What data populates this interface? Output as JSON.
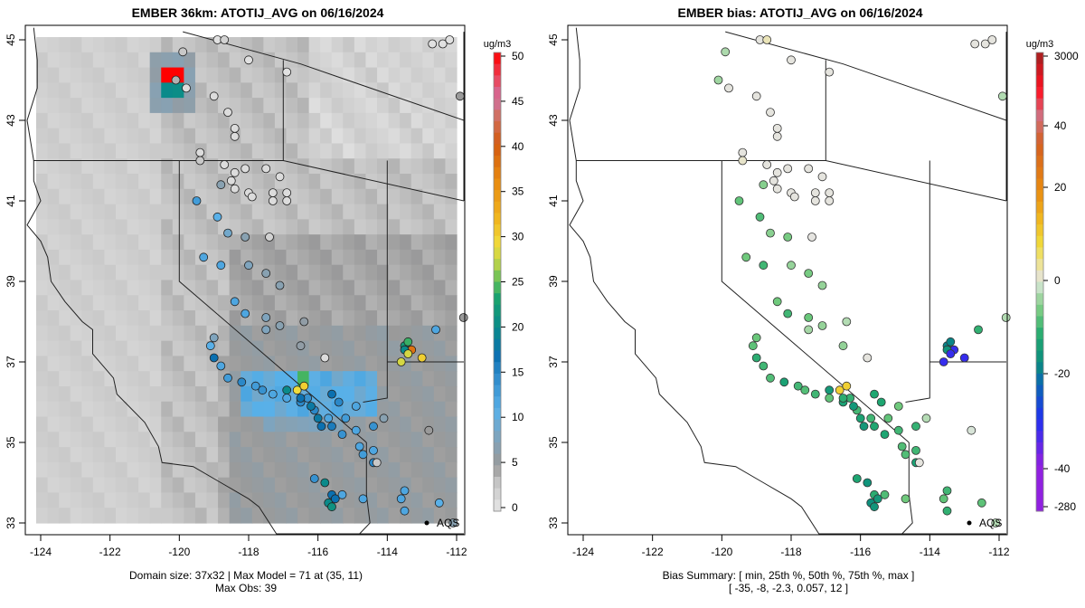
{
  "chart_data": [
    {
      "type": "heatmap",
      "title": "EMBER 36km: ATOTIJ_AVG on 06/16/2024",
      "xlim": [
        -124.2,
        -111.8
      ],
      "ylim": [
        32.8,
        45.2
      ],
      "x_ticks": [
        "-124",
        "-122",
        "-120",
        "-118",
        "-116",
        "-114",
        "-112"
      ],
      "y_ticks": [
        "33",
        "35",
        "37",
        "39",
        "41",
        "43",
        "45"
      ],
      "colorbar": {
        "unit": "ug/m3",
        "ticks": [
          "0",
          "5",
          "10",
          "15",
          "20",
          "25",
          "30",
          "35",
          "40",
          "45",
          "50"
        ],
        "range": [
          0,
          50
        ]
      },
      "footer": [
        "Domain size: 37x32 | Max Model = 71 at (35, 11)",
        "Max Obs: 39"
      ],
      "marker_label": "AQS",
      "obs_points": [
        [
          -119.9,
          44.7,
          3
        ],
        [
          -118.9,
          45.0,
          0.5
        ],
        [
          -118.7,
          45.0,
          2
        ],
        [
          -118.0,
          44.5,
          0.5
        ],
        [
          -116.9,
          44.2,
          0.5
        ],
        [
          -120.1,
          44.0,
          4
        ],
        [
          -119.8,
          43.8,
          1
        ],
        [
          -119.0,
          43.6,
          1
        ],
        [
          -118.6,
          43.2,
          1
        ],
        [
          -118.4,
          42.8,
          1
        ],
        [
          -118.4,
          42.6,
          1
        ],
        [
          -119.4,
          42.2,
          1
        ],
        [
          -119.4,
          42.0,
          3
        ],
        [
          -118.7,
          41.9,
          1
        ],
        [
          -118.4,
          41.7,
          1
        ],
        [
          -118.1,
          41.8,
          1
        ],
        [
          -117.5,
          41.8,
          1
        ],
        [
          -117.1,
          41.6,
          1
        ],
        [
          -118.8,
          41.4,
          7
        ],
        [
          -118.5,
          41.5,
          1
        ],
        [
          -118.4,
          41.3,
          1
        ],
        [
          -118.0,
          41.2,
          1
        ],
        [
          -117.9,
          41.1,
          1
        ],
        [
          -117.3,
          41.2,
          1
        ],
        [
          -117.3,
          41.0,
          1
        ],
        [
          -116.9,
          41.0,
          1
        ],
        [
          -116.9,
          41.2,
          1
        ],
        [
          -119.5,
          41.0,
          13
        ],
        [
          -118.9,
          40.6,
          11
        ],
        [
          -118.6,
          40.2,
          9
        ],
        [
          -118.1,
          40.1,
          7
        ],
        [
          -117.4,
          40.1,
          2
        ],
        [
          -119.3,
          39.6,
          12
        ],
        [
          -118.8,
          39.4,
          12
        ],
        [
          -118.0,
          39.4,
          8
        ],
        [
          -117.5,
          39.2,
          7
        ],
        [
          -117.1,
          38.9,
          7
        ],
        [
          -118.4,
          38.5,
          12
        ],
        [
          -118.1,
          38.2,
          12
        ],
        [
          -116.4,
          38.0,
          6
        ],
        [
          -117.5,
          38.1,
          8
        ],
        [
          -117.1,
          37.9,
          7
        ],
        [
          -117.5,
          37.8,
          8
        ],
        [
          -116.5,
          37.4,
          6
        ],
        [
          -115.8,
          37.1,
          1
        ],
        [
          -119.0,
          37.6,
          8
        ],
        [
          -119.1,
          37.4,
          11
        ],
        [
          -119.0,
          37.1,
          17
        ],
        [
          -118.8,
          36.9,
          12
        ],
        [
          -118.6,
          36.6,
          13
        ],
        [
          -118.2,
          36.5,
          15
        ],
        [
          -117.8,
          36.4,
          13
        ],
        [
          -117.6,
          36.3,
          14
        ],
        [
          -117.3,
          36.2,
          12
        ],
        [
          -116.9,
          36.1,
          12
        ],
        [
          -116.5,
          36.0,
          15
        ],
        [
          -116.3,
          36.1,
          14
        ],
        [
          -116.1,
          35.8,
          15
        ],
        [
          -115.7,
          35.6,
          12
        ],
        [
          -116.9,
          36.3,
          20
        ],
        [
          -116.6,
          36.3,
          29
        ],
        [
          -116.4,
          36.4,
          30
        ],
        [
          -116.5,
          36.1,
          17
        ],
        [
          -116.2,
          35.9,
          18
        ],
        [
          -116.0,
          35.6,
          18
        ],
        [
          -115.9,
          35.4,
          17
        ],
        [
          -115.6,
          35.4,
          16
        ],
        [
          -115.2,
          35.6,
          13
        ],
        [
          -115.4,
          36.0,
          15
        ],
        [
          -115.6,
          36.2,
          17
        ],
        [
          -115.3,
          35.2,
          14
        ],
        [
          -114.8,
          34.9,
          12
        ],
        [
          -114.9,
          35.9,
          12
        ],
        [
          -114.9,
          35.3,
          12
        ],
        [
          -114.7,
          34.7,
          13
        ],
        [
          -114.4,
          34.5,
          15
        ],
        [
          -114.4,
          35.4,
          14
        ],
        [
          -114.1,
          35.6,
          7
        ],
        [
          -114.4,
          34.8,
          12
        ],
        [
          -114.3,
          34.5,
          3
        ],
        [
          -116.1,
          34.1,
          14
        ],
        [
          -115.8,
          34.0,
          20
        ],
        [
          -115.6,
          33.7,
          17
        ],
        [
          -115.7,
          33.5,
          20
        ],
        [
          -115.6,
          33.4,
          21
        ],
        [
          -115.5,
          33.6,
          17
        ],
        [
          -115.3,
          33.7,
          12
        ],
        [
          -114.7,
          33.6,
          12
        ],
        [
          -113.5,
          33.8,
          12
        ],
        [
          -113.6,
          33.6,
          12
        ],
        [
          -113.5,
          33.3,
          12
        ],
        [
          -112.5,
          33.5,
          11
        ],
        [
          -112.1,
          33.0,
          7
        ],
        [
          -113.5,
          37.4,
          22
        ],
        [
          -113.4,
          37.5,
          24
        ],
        [
          -113.3,
          37.3,
          38
        ],
        [
          -113.5,
          37.3,
          20
        ],
        [
          -113.4,
          37.2,
          28
        ],
        [
          -113.6,
          37.0,
          28
        ],
        [
          -113.0,
          37.1,
          30
        ],
        [
          -112.6,
          37.8,
          12
        ],
        [
          -111.8,
          38.1,
          5
        ],
        [
          -112.8,
          35.3,
          5
        ],
        [
          -112.7,
          44.9,
          0.5
        ],
        [
          -112.4,
          44.9,
          0.5
        ],
        [
          -112.2,
          45.0,
          0.5
        ],
        [
          -111.9,
          43.6,
          5
        ]
      ],
      "grid_values_summary": "background model field 0-12 ug/m3 with peak cell at (35,11)"
    },
    {
      "type": "scatter",
      "title": "EMBER bias: ATOTIJ_AVG on 06/16/2024",
      "xlim": [
        -124.2,
        -111.8
      ],
      "ylim": [
        32.8,
        45.2
      ],
      "x_ticks": [
        "-124",
        "-122",
        "-120",
        "-118",
        "-116",
        "-114",
        "-112"
      ],
      "y_ticks": [
        "33",
        "35",
        "37",
        "39",
        "41",
        "43",
        "45"
      ],
      "colorbar": {
        "unit": "ug/m3",
        "ticks": [
          "3000",
          "40",
          "20",
          "0",
          "-20",
          "-40",
          "-280"
        ],
        "breaks": [
          -280,
          -40,
          -20,
          0,
          20,
          40,
          3000
        ]
      },
      "footer": [
        "Bias Summary: [ min, 25th %, 50th %, 75th %, max ]",
        "[ -35,   -8,   -2.3,   0.057,   12 ]"
      ],
      "marker_label": "AQS",
      "bias_summary": {
        "min": -35,
        "p25": -8,
        "p50": -2.3,
        "p75": 0.057,
        "max": 12
      }
    }
  ]
}
